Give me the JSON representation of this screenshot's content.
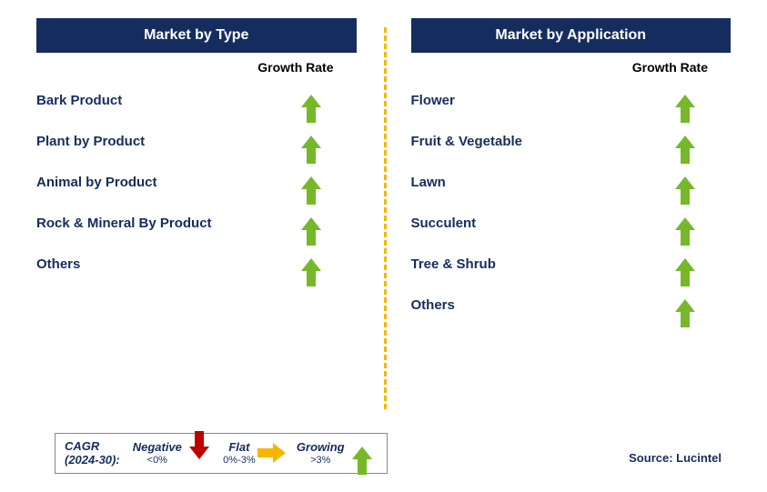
{
  "colors": {
    "header_bg": "#152d5e",
    "header_text": "#ffffff",
    "label_text": "#152d5e",
    "growth_arrow": "#76b82a",
    "flat_arrow": "#f7b500",
    "negative_arrow": "#c00000",
    "divider": "#f7b500"
  },
  "left": {
    "title": "Market by Type",
    "growth_header": "Growth Rate",
    "rows": [
      {
        "label": "Bark Product",
        "growth": "growing"
      },
      {
        "label": "Plant by Product",
        "growth": "growing"
      },
      {
        "label": "Animal by Product",
        "growth": "growing"
      },
      {
        "label": "Rock & Mineral By Product",
        "growth": "growing"
      },
      {
        "label": "Others",
        "growth": "growing"
      }
    ]
  },
  "right": {
    "title": "Market by Application",
    "growth_header": "Growth Rate",
    "rows": [
      {
        "label": "Flower",
        "growth": "growing"
      },
      {
        "label": "Fruit & Vegetable",
        "growth": "growing"
      },
      {
        "label": "Lawn",
        "growth": "growing"
      },
      {
        "label": "Succulent",
        "growth": "growing"
      },
      {
        "label": "Tree & Shrub",
        "growth": "growing"
      },
      {
        "label": "Others",
        "growth": "growing"
      }
    ]
  },
  "legend": {
    "head1": "CAGR",
    "head2": "(2024-30):",
    "items": [
      {
        "title": "Negative",
        "sub": "<0%",
        "arrow": "down"
      },
      {
        "title": "Flat",
        "sub": "0%-3%",
        "arrow": "right"
      },
      {
        "title": "Growing",
        "sub": ">3%",
        "arrow": "up"
      }
    ]
  },
  "source": "Source: Lucintel"
}
